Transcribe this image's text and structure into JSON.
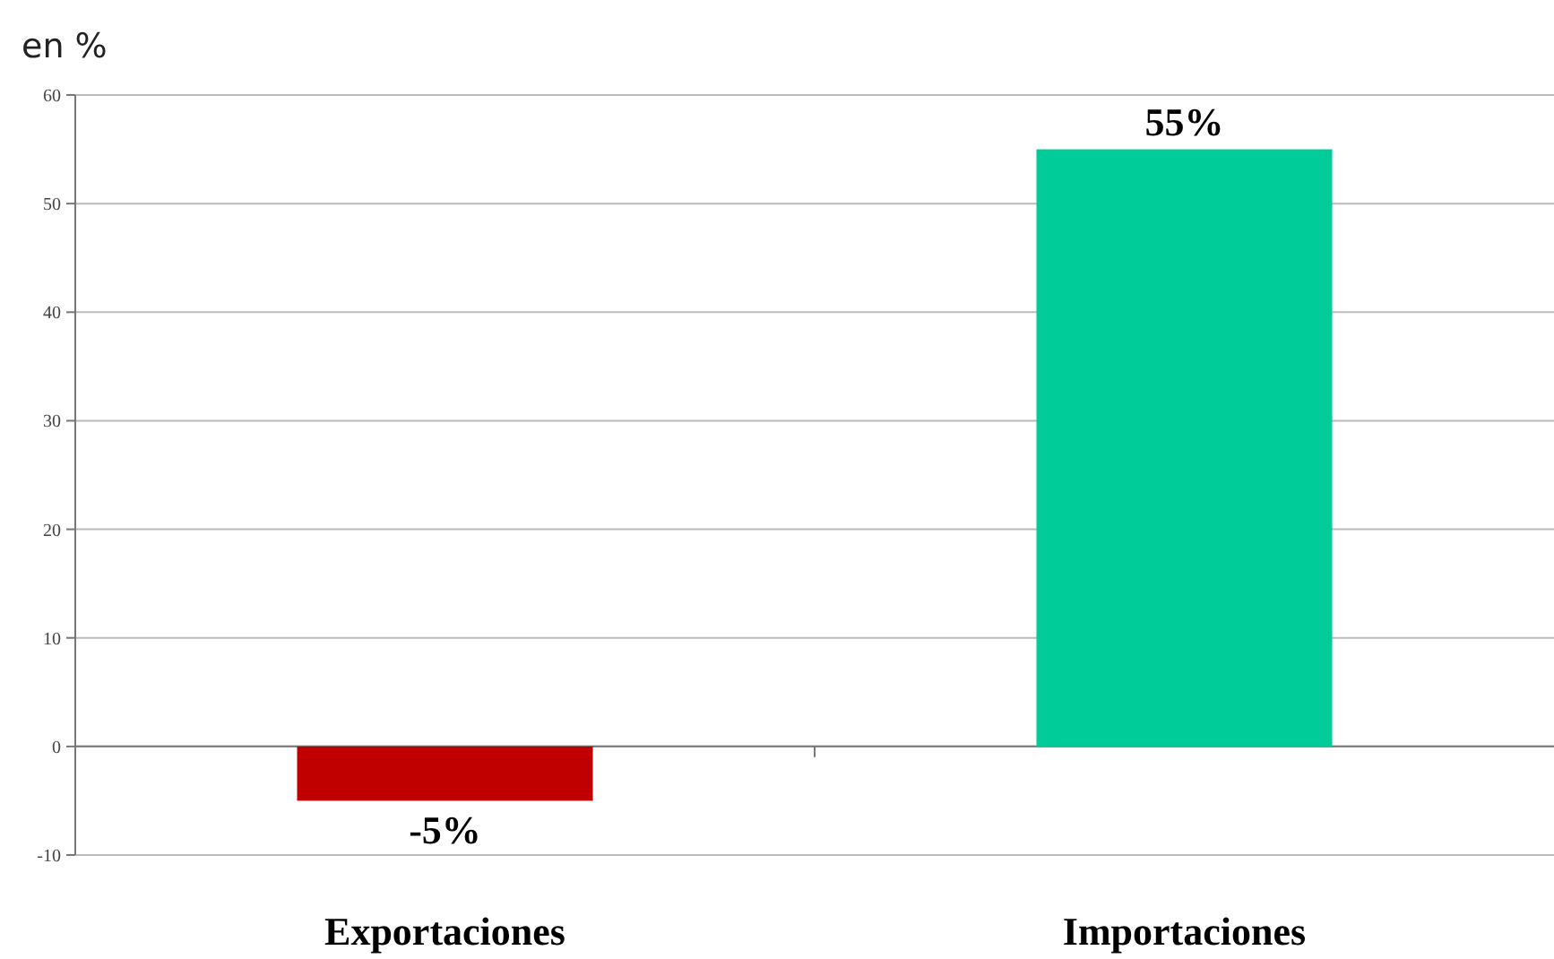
{
  "chart_data": {
    "type": "bar",
    "ylabel": "en %",
    "categories": [
      "Exportaciones",
      "Importaciones"
    ],
    "values": [
      -5,
      55
    ],
    "colors": [
      "#c00000",
      "#00cc99"
    ],
    "value_labels": [
      "-5%",
      "55%"
    ],
    "ylim": [
      -10,
      60
    ],
    "yticks": [
      -10,
      0,
      10,
      20,
      30,
      40,
      50,
      60
    ],
    "grid": "y"
  }
}
